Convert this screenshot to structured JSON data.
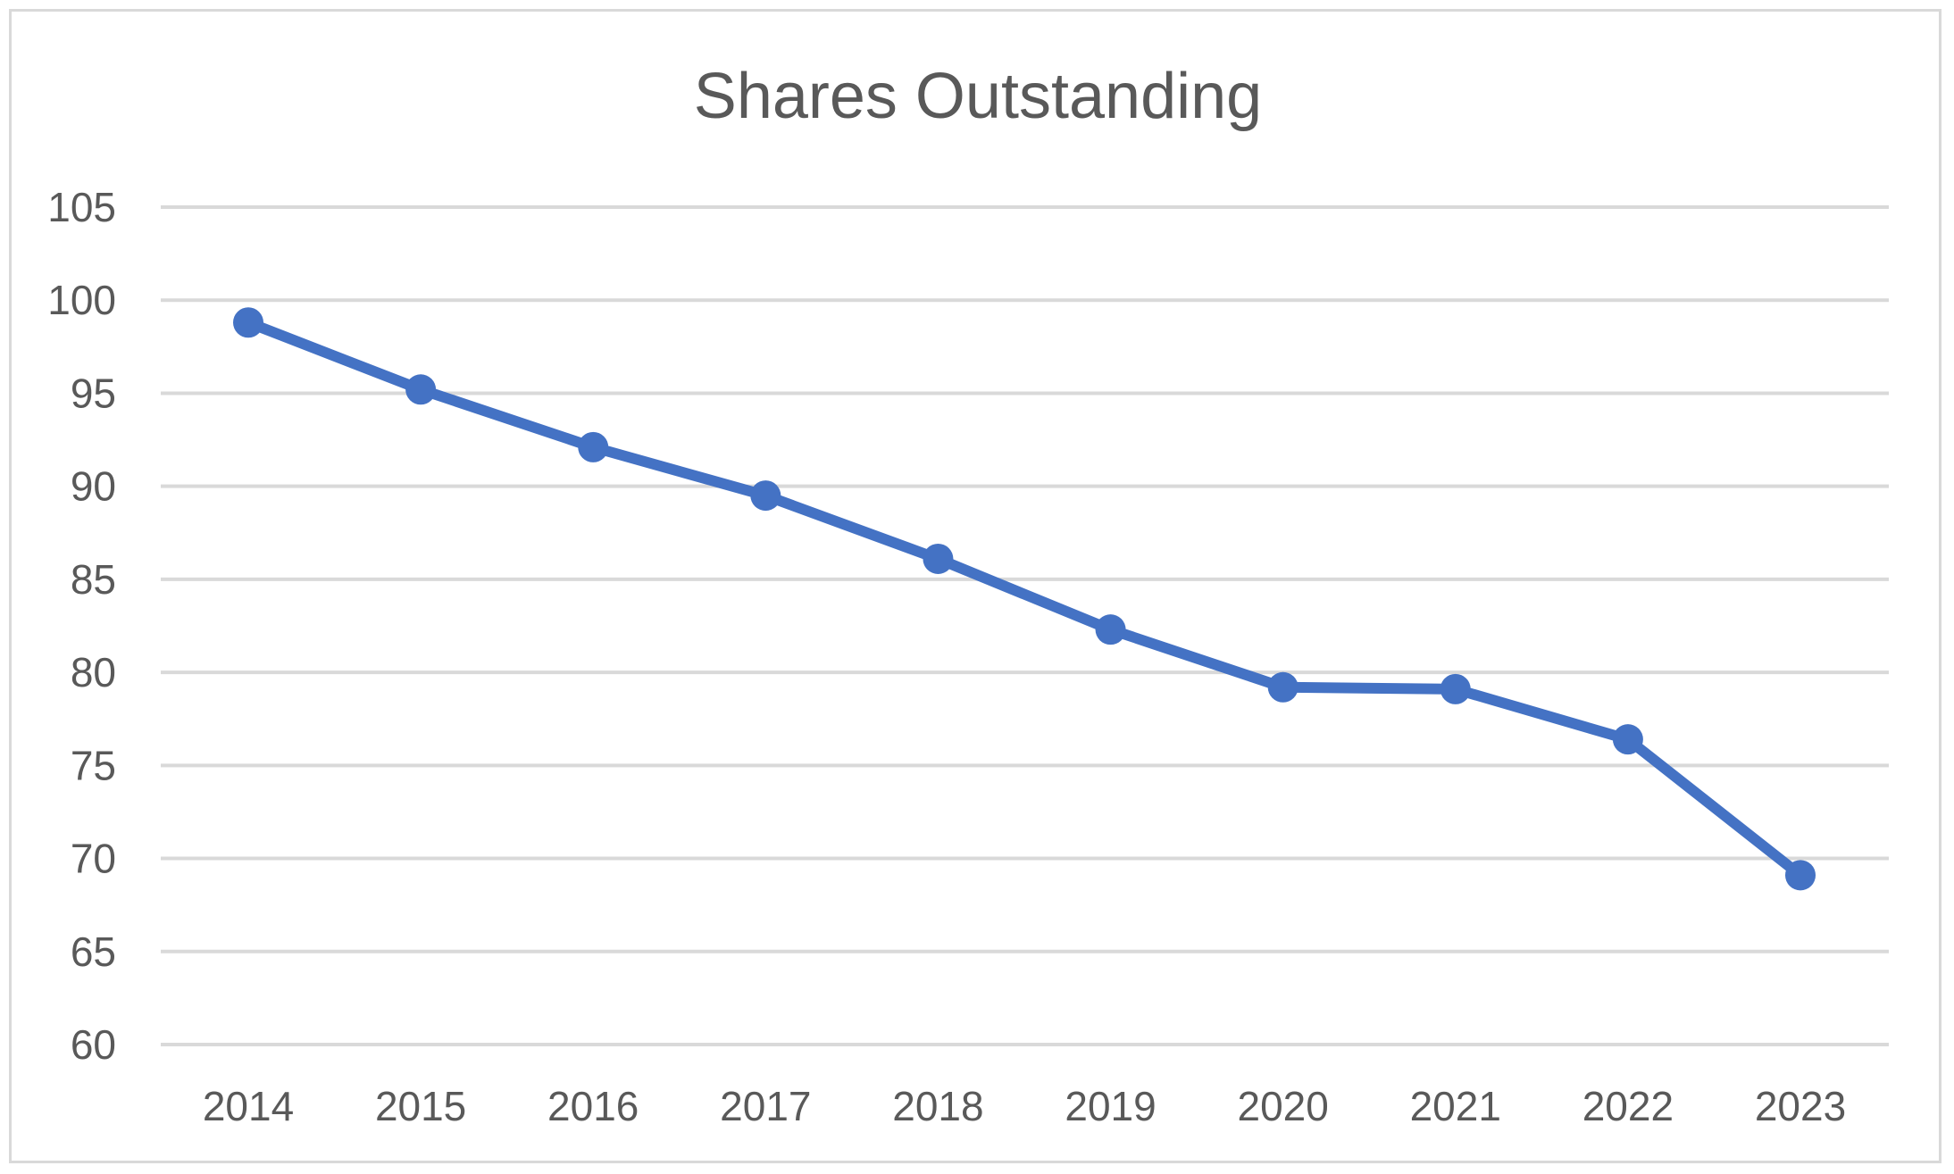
{
  "chart_data": {
    "type": "line",
    "title": "Shares Outstanding",
    "xlabel": "",
    "ylabel": "",
    "categories": [
      "2014",
      "2015",
      "2016",
      "2017",
      "2018",
      "2019",
      "2020",
      "2021",
      "2022",
      "2023"
    ],
    "series": [
      {
        "values": [
          98.8,
          95.2,
          92.1,
          89.5,
          86.1,
          82.3,
          79.2,
          79.1,
          76.4,
          69.1
        ],
        "color": "#4472c4"
      }
    ],
    "ylim": [
      60,
      105
    ],
    "yticks": [
      60,
      65,
      70,
      75,
      80,
      85,
      90,
      95,
      100,
      105
    ],
    "grid": true,
    "legend": "none"
  }
}
